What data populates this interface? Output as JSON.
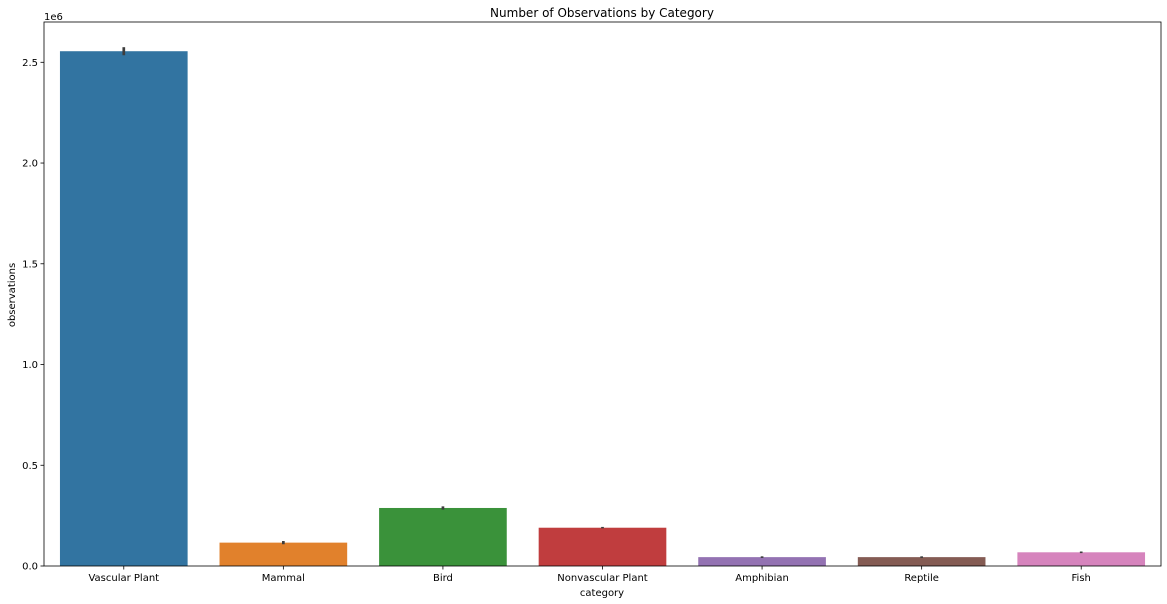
{
  "chart_data": {
    "type": "bar",
    "title": "Number of Observations by Category",
    "xlabel": "category",
    "ylabel": "observations",
    "y_offset_label": "1e6",
    "categories": [
      "Vascular Plant",
      "Mammal",
      "Bird",
      "Nonvascular Plant",
      "Amphibian",
      "Reptile",
      "Fish"
    ],
    "values": [
      2555000,
      116000,
      288000,
      190000,
      44000,
      44000,
      68000
    ],
    "error_low": [
      2535000,
      108000,
      280000,
      187000,
      40000,
      40000,
      64000
    ],
    "error_high": [
      2575000,
      124000,
      296000,
      194000,
      48000,
      48000,
      72000
    ],
    "colors": [
      "#3274a1",
      "#e1812c",
      "#3a923a",
      "#c03d3e",
      "#9372b2",
      "#845b53",
      "#d684bd"
    ],
    "ylim": [
      0,
      2700000
    ],
    "yticks": [
      0,
      500000,
      1000000,
      1500000,
      2000000,
      2500000
    ],
    "ytick_labels": [
      "0.0",
      "0.5",
      "1.0",
      "1.5",
      "2.0",
      "2.5"
    ],
    "grid": false,
    "legend": false,
    "error_bar_color": "#3d3d3d"
  }
}
